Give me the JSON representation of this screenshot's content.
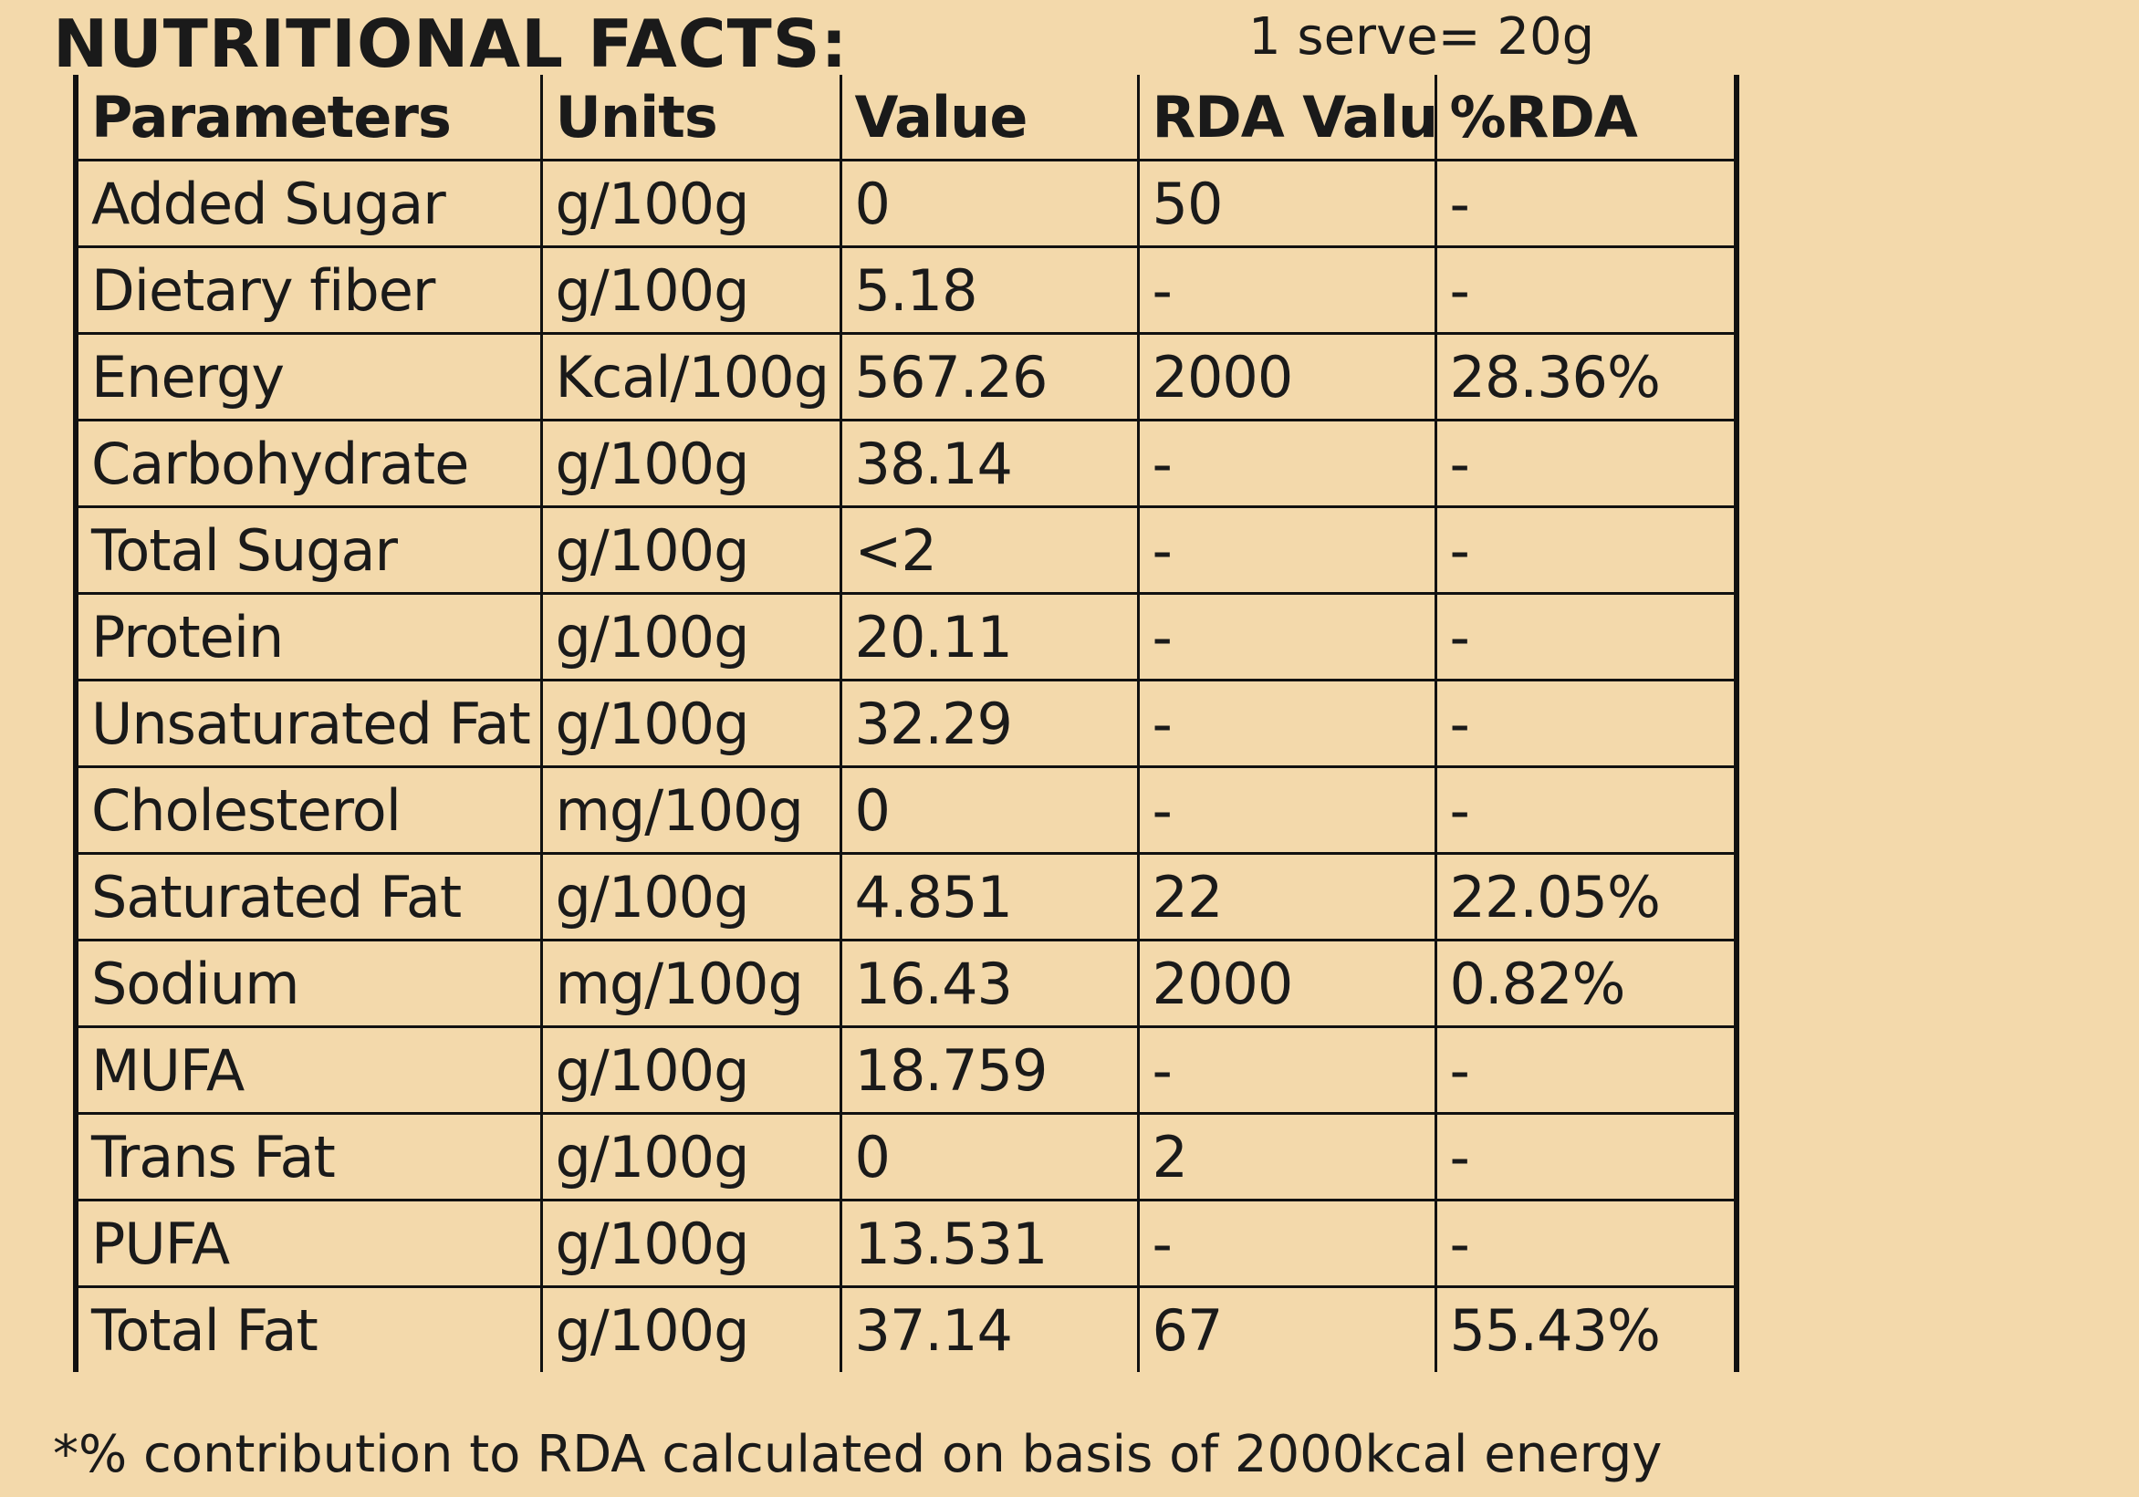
{
  "title": "NUTRITIONAL FACTS:",
  "serving": "1 serve= 20g",
  "table": {
    "headers": [
      "Parameters",
      "Units",
      "Value",
      "RDA Value",
      "%RDA"
    ],
    "rows": [
      [
        "Added Sugar",
        "g/100g",
        "0",
        "50",
        "-"
      ],
      [
        "Dietary fiber",
        "g/100g",
        "5.18",
        "-",
        "-"
      ],
      [
        "Energy",
        "Kcal/100g",
        "567.26",
        "2000",
        "28.36%"
      ],
      [
        "Carbohydrate",
        "g/100g",
        "38.14",
        "-",
        "-"
      ],
      [
        "Total Sugar",
        "g/100g",
        "<2",
        "-",
        "-"
      ],
      [
        "Protein",
        "g/100g",
        "20.11",
        "-",
        "-"
      ],
      [
        "Unsaturated Fat",
        "g/100g",
        "32.29",
        "-",
        "-"
      ],
      [
        "Cholesterol",
        "mg/100g",
        "0",
        "-",
        "-"
      ],
      [
        "Saturated Fat",
        "g/100g",
        "4.851",
        "22",
        "22.05%"
      ],
      [
        "Sodium",
        "mg/100g",
        "16.43",
        "2000",
        "0.82%"
      ],
      [
        "MUFA",
        "g/100g",
        "18.759",
        "-",
        "-"
      ],
      [
        "Trans Fat",
        "g/100g",
        "0",
        "2",
        "-"
      ],
      [
        "PUFA",
        "g/100g",
        "13.531",
        "-",
        "-"
      ],
      [
        "Total Fat",
        "g/100g",
        "37.14",
        "67",
        "55.43%"
      ]
    ]
  },
  "footnote": "*% contribution to RDA calculated on basis of 2000kcal energy"
}
